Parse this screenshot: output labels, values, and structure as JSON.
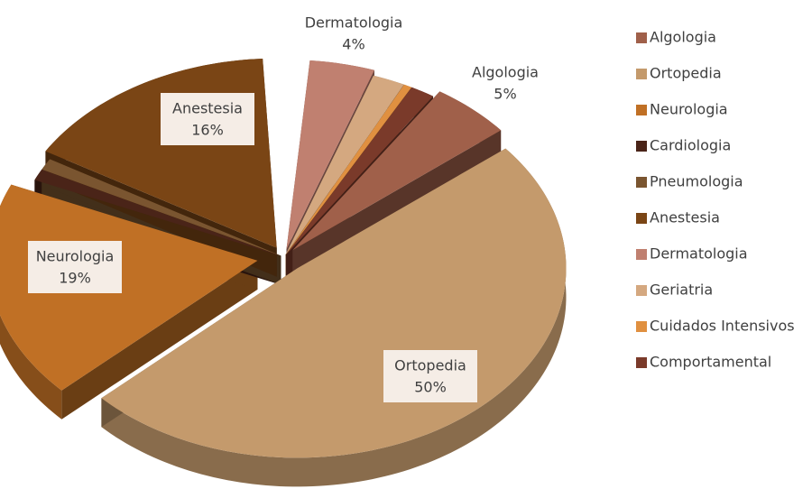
{
  "chart_data": {
    "type": "pie",
    "categories": [
      "Algologia",
      "Ortopedia",
      "Neurologia",
      "Cardiologia",
      "Pneumologia",
      "Anestesia",
      "Dermatologia",
      "Geriatria",
      "Cuidados Intensivos",
      "Comportamental"
    ],
    "values": [
      5,
      50,
      19,
      1,
      1,
      16,
      4,
      2,
      0.5,
      1.5
    ],
    "value_labels": [
      "5%",
      "50%",
      "19%",
      null,
      null,
      "16%",
      "4%",
      null,
      null,
      null
    ],
    "colors": [
      "#a0604a",
      "#c49a6c",
      "#c07025",
      "#4a2418",
      "#7a5530",
      "#7a4515",
      "#c08070",
      "#d4a880",
      "#e09040",
      "#7a3a2a"
    ],
    "legend": "right"
  }
}
